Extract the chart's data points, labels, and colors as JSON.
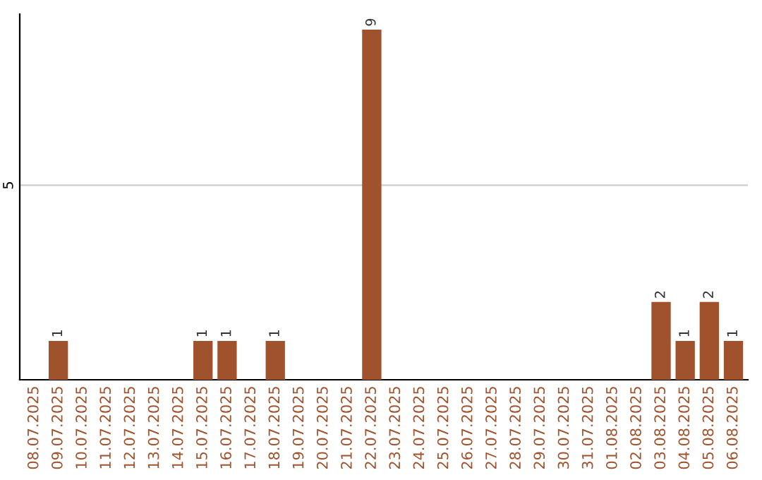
{
  "chart_data": {
    "type": "bar",
    "categories": [
      "08.07.2025",
      "09.07.2025",
      "10.07.2025",
      "11.07.2025",
      "12.07.2025",
      "13.07.2025",
      "14.07.2025",
      "15.07.2025",
      "16.07.2025",
      "17.07.2025",
      "18.07.2025",
      "19.07.2025",
      "20.07.2025",
      "21.07.2025",
      "22.07.2025",
      "23.07.2025",
      "24.07.2025",
      "25.07.2025",
      "26.07.2025",
      "27.07.2025",
      "28.07.2025",
      "29.07.2025",
      "30.07.2025",
      "31.07.2025",
      "01.08.2025",
      "02.08.2025",
      "03.08.2025",
      "04.08.2025",
      "05.08.2025",
      "06.08.2025"
    ],
    "values": [
      0,
      1,
      0,
      0,
      0,
      0,
      0,
      1,
      1,
      0,
      1,
      0,
      0,
      0,
      9,
      0,
      0,
      0,
      0,
      0,
      0,
      0,
      0,
      0,
      0,
      0,
      2,
      1,
      2,
      1
    ],
    "value_labels": [
      null,
      "1",
      null,
      null,
      null,
      null,
      null,
      "1",
      "1",
      null,
      "1",
      null,
      null,
      null,
      "9",
      null,
      null,
      null,
      null,
      null,
      null,
      null,
      null,
      null,
      null,
      null,
      "2",
      "1",
      "2",
      "1"
    ],
    "color": "#a0522d",
    "ylim": [
      0,
      9.4
    ],
    "yticks": [
      5
    ],
    "grid": "y"
  }
}
